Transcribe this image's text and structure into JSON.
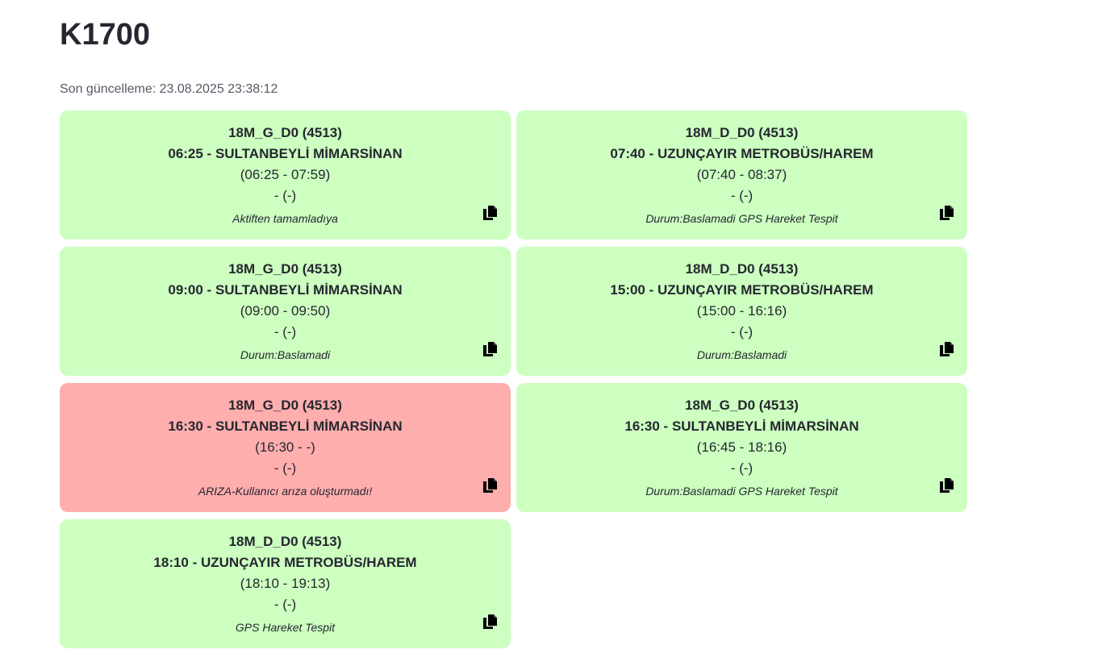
{
  "page": {
    "title": "K1700",
    "last_updated": "Son güncelleme: 23.08.2025 23:38:12"
  },
  "icons": {
    "copy": "copy-icon"
  },
  "colors": {
    "card_ok": "#ccffc0",
    "card_fault": "#ffaeae",
    "text": "#262730"
  },
  "trips": [
    {
      "route_code": "18M_G_D0 (4513)",
      "departure": "06:25 - SULTANBEYLİ MİMARSİNAN",
      "time_range": "(06:25 - 07:59)",
      "extra": "- (-)",
      "status": "Aktiften tamamladıya",
      "state": "ok"
    },
    {
      "route_code": "18M_D_D0 (4513)",
      "departure": "07:40 - UZUNÇAYIR METROBÜS/HAREM",
      "time_range": "(07:40 - 08:37)",
      "extra": "- (-)",
      "status": "Durum:Baslamadi GPS Hareket Tespit",
      "state": "ok"
    },
    {
      "route_code": "18M_G_D0 (4513)",
      "departure": "09:00 - SULTANBEYLİ MİMARSİNAN",
      "time_range": "(09:00 - 09:50)",
      "extra": "- (-)",
      "status": "Durum:Baslamadi",
      "state": "ok"
    },
    {
      "route_code": "18M_D_D0 (4513)",
      "departure": "15:00 - UZUNÇAYIR METROBÜS/HAREM",
      "time_range": "(15:00 - 16:16)",
      "extra": "- (-)",
      "status": "Durum:Baslamadi",
      "state": "ok"
    },
    {
      "route_code": "18M_G_D0 (4513)",
      "departure": "16:30 - SULTANBEYLİ MİMARSİNAN",
      "time_range": "(16:30 - -)",
      "extra": "- (-)",
      "status": "ARIZA-Kullanıcı arıza oluşturmadı!",
      "state": "fault"
    },
    {
      "route_code": "18M_G_D0 (4513)",
      "departure": "16:30 - SULTANBEYLİ MİMARSİNAN",
      "time_range": "(16:45 - 18:16)",
      "extra": "- (-)",
      "status": "Durum:Baslamadi GPS Hareket Tespit",
      "state": "ok"
    },
    {
      "route_code": "18M_D_D0 (4513)",
      "departure": "18:10 - UZUNÇAYIR METROBÜS/HAREM",
      "time_range": "(18:10 - 19:13)",
      "extra": "- (-)",
      "status": "GPS Hareket Tespit",
      "state": "ok"
    }
  ]
}
